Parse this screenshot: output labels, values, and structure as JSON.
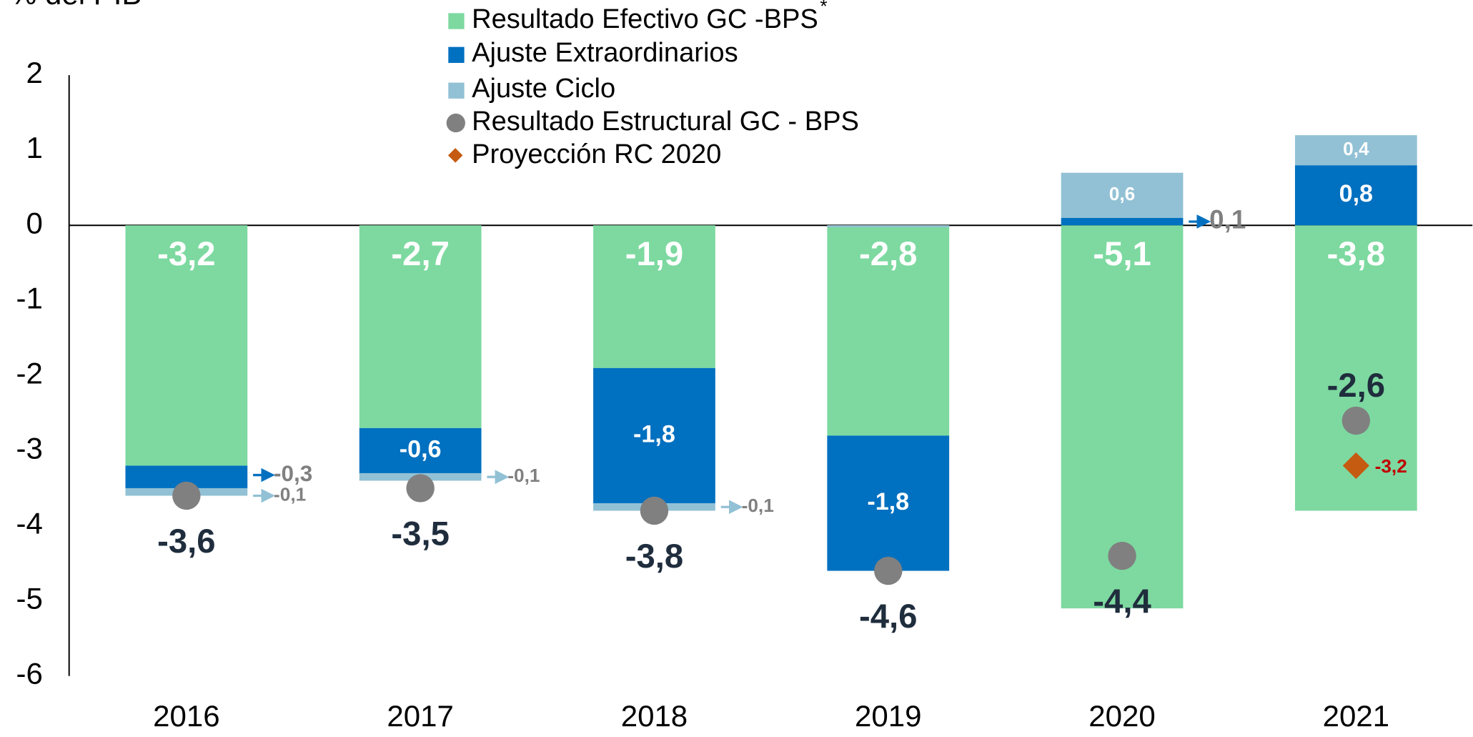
{
  "chart_data": {
    "type": "stacked_bar",
    "title": "% del PIB",
    "categories": [
      "2016",
      "2017",
      "2018",
      "2019",
      "2020",
      "2021"
    ],
    "ylim": [
      -6,
      2
    ],
    "yticks": [
      2,
      1,
      0,
      -1,
      -2,
      -3,
      -4,
      -5,
      -6
    ],
    "legend_note": "*",
    "series": [
      {
        "name": "Resultado Efectivo GC -BPS",
        "color": "#7dd9a0",
        "values": [
          -3.2,
          -2.7,
          -1.9,
          -2.8,
          -5.1,
          -3.8
        ],
        "value_labels": [
          "-3,2",
          "-2,7",
          "-1,9",
          "-2,8",
          "-5,1",
          "-3,8"
        ]
      },
      {
        "name": "Ajuste Extraordinarios",
        "color": "#0070c0",
        "values": [
          -0.3,
          -0.6,
          -1.8,
          -1.8,
          0.1,
          0.8
        ],
        "value_labels": [
          "-0,3",
          "-0,6",
          "-1,8",
          "-1,8",
          "0,1",
          "0,8"
        ]
      },
      {
        "name": "Ajuste Ciclo",
        "color": "#92c1d5",
        "values": [
          -0.1,
          -0.1,
          -0.1,
          0,
          0.6,
          0.4
        ],
        "value_labels": [
          "-0,1",
          "-0,1",
          "-0,1",
          null,
          "0,6",
          "0,4"
        ]
      },
      {
        "name": "Resultado Estructural GC - BPS",
        "color": "#808080",
        "type": "scatter",
        "values": [
          -3.6,
          -3.5,
          -3.8,
          -4.6,
          -4.4,
          -2.6
        ],
        "value_labels": [
          "-3,6",
          "-3,5",
          "-3,8",
          "-4,6",
          "-4,4",
          "-2,6"
        ]
      },
      {
        "name": "Proyección RC 2020",
        "color": "#c55a11",
        "type": "scatter",
        "values": [
          null,
          null,
          null,
          null,
          null,
          -3.2
        ],
        "value_labels": [
          null,
          null,
          null,
          null,
          null,
          "-3,2"
        ]
      }
    ]
  }
}
